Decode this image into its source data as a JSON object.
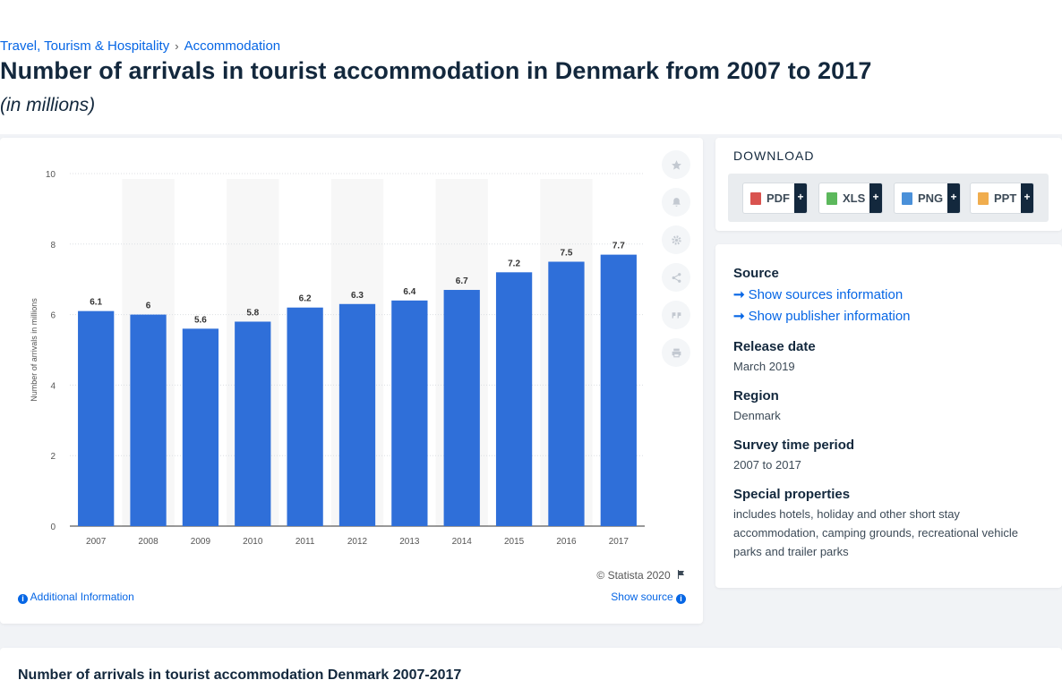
{
  "breadcrumb": {
    "items": [
      "Travel, Tourism & Hospitality",
      "Accommodation"
    ],
    "separator": "›"
  },
  "title": "Number of arrivals in tourist accommodation in Denmark from 2007 to 2017",
  "subtitle": "(in millions)",
  "chart_data": {
    "type": "bar",
    "categories": [
      "2007",
      "2008",
      "2009",
      "2010",
      "2011",
      "2012",
      "2013",
      "2014",
      "2015",
      "2016",
      "2017"
    ],
    "values": [
      6.1,
      6,
      5.6,
      5.8,
      6.2,
      6.3,
      6.4,
      6.7,
      7.2,
      7.5,
      7.7
    ],
    "value_labels": [
      "6.1",
      "6",
      "5.6",
      "5.8",
      "6.2",
      "6.3",
      "6.4",
      "6.7",
      "7.2",
      "7.5",
      "7.7"
    ],
    "ylabel": "Number of arrivals in millions",
    "ylim": [
      0,
      10
    ],
    "yticks": [
      "0",
      "2",
      "4",
      "6",
      "8",
      "10"
    ],
    "grid": true,
    "bar_color": "#2f6fd9",
    "alt_band_color": "#f7f7f7"
  },
  "chart_footer": {
    "copyright": "© Statista 2020",
    "additional_info": "Additional Information",
    "show_source": "Show source"
  },
  "side_tools": [
    {
      "icon": "star-icon"
    },
    {
      "icon": "bell-icon"
    },
    {
      "icon": "gear-icon"
    },
    {
      "icon": "share-icon"
    },
    {
      "icon": "quote-icon"
    },
    {
      "icon": "print-icon"
    }
  ],
  "download": {
    "title": "DOWNLOAD",
    "buttons": [
      {
        "label": "PDF",
        "color": "#d9534f"
      },
      {
        "label": "XLS",
        "color": "#5cb85c"
      },
      {
        "label": "PNG",
        "color": "#4a90d9"
      },
      {
        "label": "PPT",
        "color": "#f0ad4e"
      }
    ],
    "plus": "+"
  },
  "info": {
    "source_label": "Source",
    "show_sources": "Show sources information",
    "show_publisher": "Show publisher information",
    "release_label": "Release date",
    "release_value": "March 2019",
    "region_label": "Region",
    "region_value": "Denmark",
    "survey_label": "Survey time period",
    "survey_value": "2007 to 2017",
    "special_label": "Special properties",
    "special_value": "includes hotels, holiday and other short stay accommodation, camping grounds, recreational vehicle parks and trailer parks"
  },
  "table_title": "Number of arrivals in tourist accommodation Denmark 2007-2017"
}
